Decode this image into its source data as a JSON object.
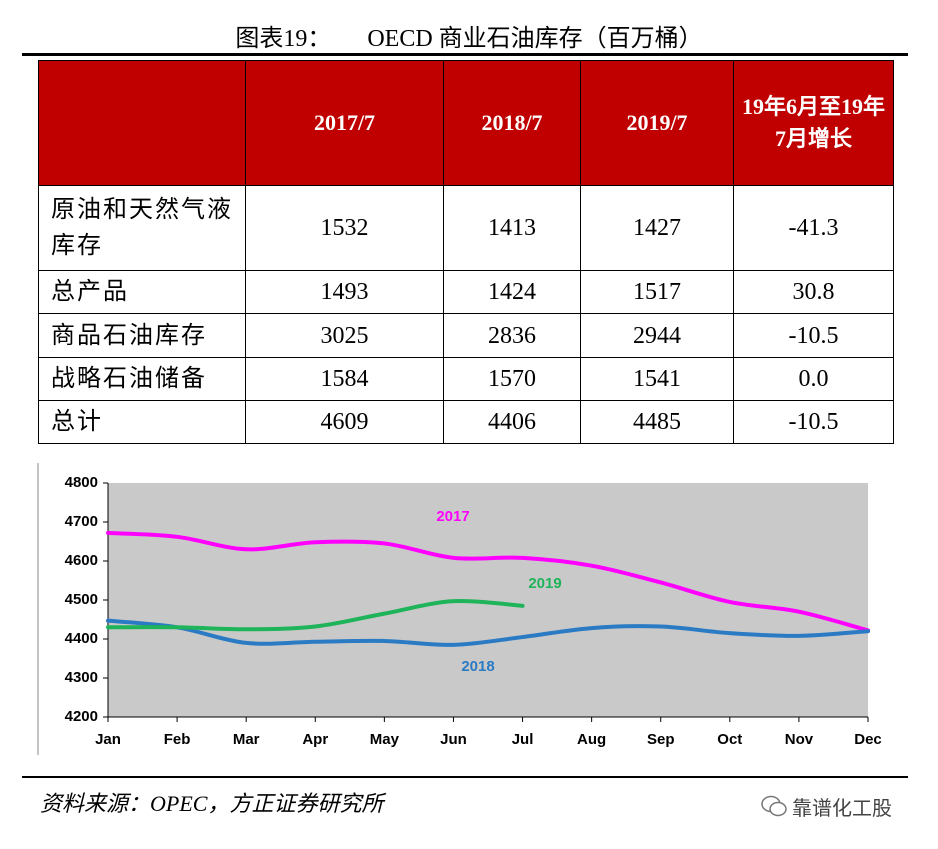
{
  "title": "图表19：      OECD 商业石油库存（百万桶）",
  "table": {
    "columns": [
      "",
      "2017/7",
      "2018/7",
      "2019/7",
      "19年6月至19年7月增长"
    ],
    "rows": [
      [
        "原油和天然气液库存",
        "1532",
        "1413",
        "1427",
        "-41.3"
      ],
      [
        "总产品",
        "1493",
        "1424",
        "1517",
        "30.8"
      ],
      [
        "商品石油库存",
        "3025",
        "2836",
        "2944",
        "-10.5"
      ],
      [
        "战略石油储备",
        "1584",
        "1570",
        "1541",
        "0.0"
      ],
      [
        "总计",
        "4609",
        "4406",
        "4485",
        "-10.5"
      ]
    ]
  },
  "chart_data": {
    "type": "line",
    "categories": [
      "Jan",
      "Feb",
      "Mar",
      "Apr",
      "May",
      "Jun",
      "Jul",
      "Aug",
      "Sep",
      "Oct",
      "Nov",
      "Dec"
    ],
    "series": [
      {
        "name": "2017",
        "color": "#ff00ff",
        "values": [
          4672,
          4662,
          4630,
          4648,
          4645,
          4608,
          4608,
          4588,
          4545,
          4495,
          4470,
          4422
        ]
      },
      {
        "name": "2018",
        "color": "#2a7bc4",
        "values": [
          4447,
          4430,
          4390,
          4393,
          4395,
          4385,
          4405,
          4428,
          4432,
          4415,
          4408,
          4420
        ]
      },
      {
        "name": "2019",
        "color": "#1fb35a",
        "values": [
          4430,
          4430,
          4425,
          4432,
          4465,
          4497,
          4485,
          null,
          null,
          null,
          null,
          null
        ]
      }
    ],
    "ylim": [
      4200,
      4800
    ],
    "yticks": [
      4200,
      4300,
      4400,
      4500,
      4600,
      4700,
      4800
    ]
  },
  "source": "资料来源：OPEC，方正证券研究所",
  "watermark": "靠谱化工股"
}
